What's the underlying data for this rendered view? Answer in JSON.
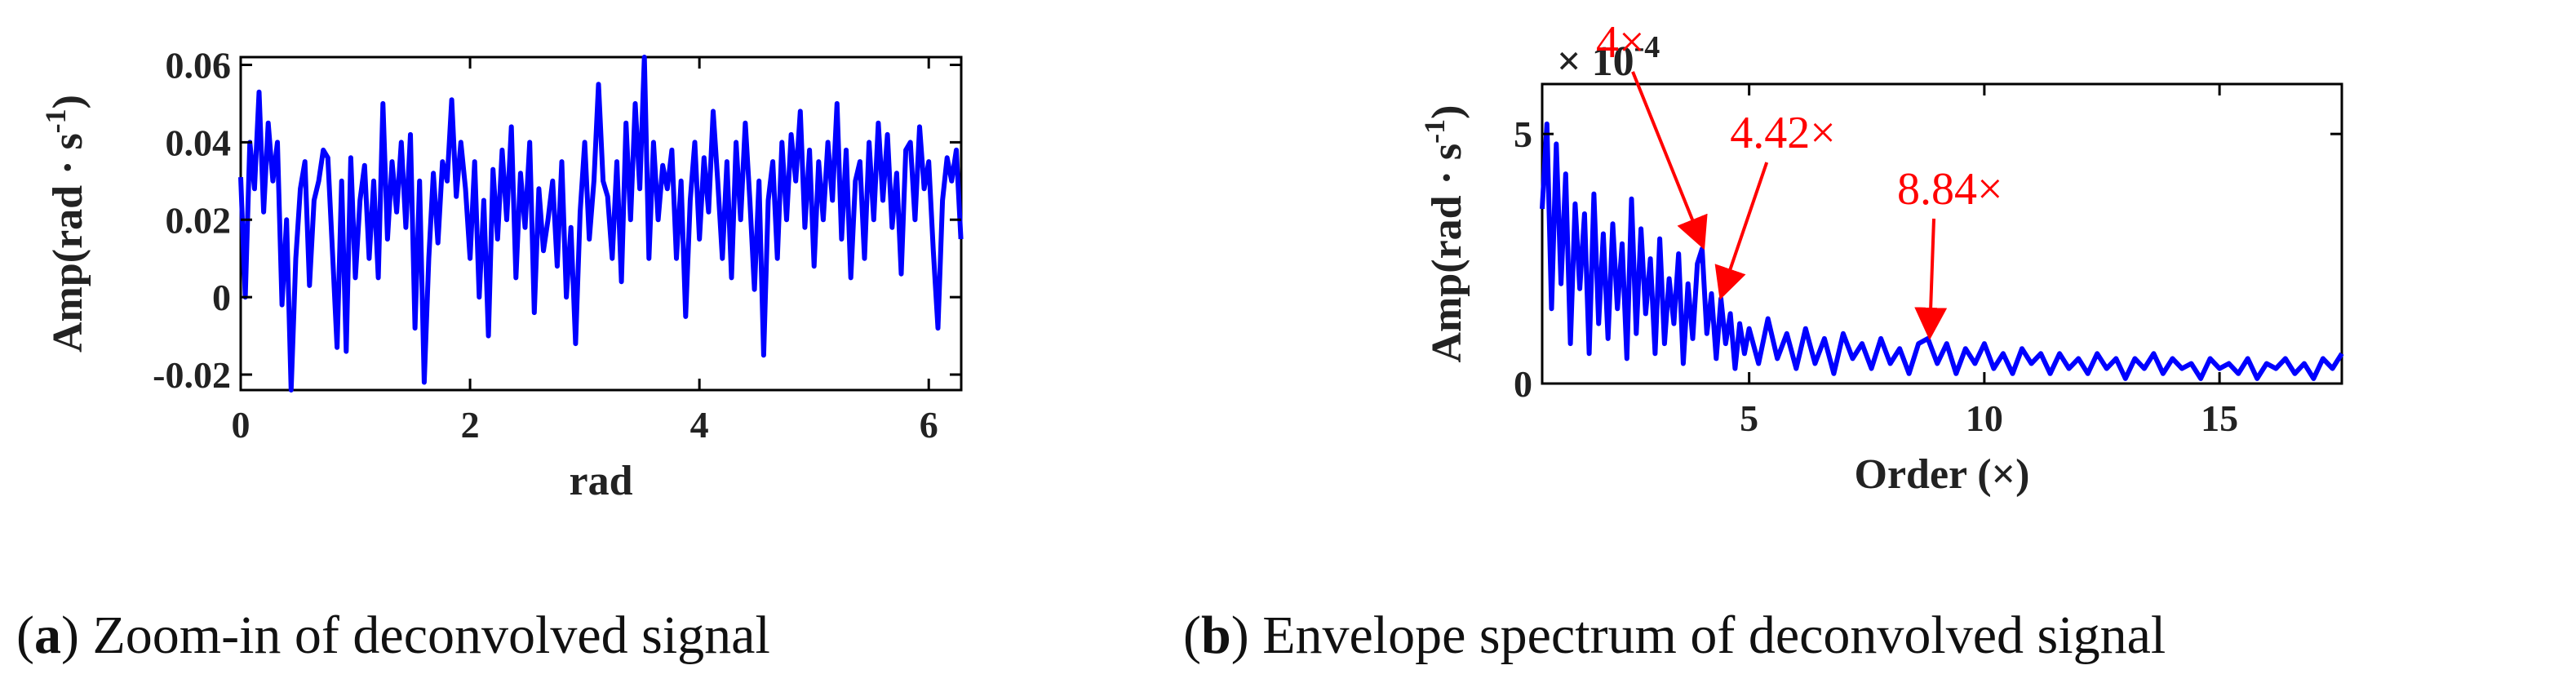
{
  "chart_data": [
    {
      "type": "line",
      "panel_label": "a",
      "caption": "Zoom-in of deconvolved signal",
      "xlabel": "rad",
      "ylabel_main": "Amp(rad · s",
      "ylabel_sup": "-1",
      "ylabel_close": ")",
      "xlim": [
        0,
        6.283
      ],
      "ylim": [
        -0.024,
        0.062
      ],
      "xticks": [
        0,
        2,
        4,
        6
      ],
      "xtick_labels": [
        "0",
        "2",
        "4",
        "6"
      ],
      "yticks": [
        -0.02,
        0,
        0.02,
        0.04,
        0.06
      ],
      "ytick_labels": [
        "-0.02",
        "0",
        "0.02",
        "0.04",
        "0.06"
      ],
      "series": [
        {
          "color": "#0000ff",
          "x": [
            0.0,
            0.04,
            0.08,
            0.12,
            0.16,
            0.2,
            0.24,
            0.28,
            0.32,
            0.36,
            0.4,
            0.44,
            0.48,
            0.52,
            0.56,
            0.6,
            0.64,
            0.68,
            0.72,
            0.76,
            0.8,
            0.84,
            0.88,
            0.92,
            0.96,
            1.0,
            1.04,
            1.08,
            1.12,
            1.16,
            1.2,
            1.24,
            1.28,
            1.32,
            1.36,
            1.4,
            1.44,
            1.48,
            1.52,
            1.56,
            1.6,
            1.64,
            1.68,
            1.72,
            1.76,
            1.8,
            1.84,
            1.88,
            1.92,
            1.96,
            2.0,
            2.04,
            2.08,
            2.12,
            2.16,
            2.2,
            2.24,
            2.28,
            2.32,
            2.36,
            2.4,
            2.44,
            2.48,
            2.52,
            2.56,
            2.6,
            2.64,
            2.68,
            2.72,
            2.76,
            2.8,
            2.84,
            2.88,
            2.92,
            2.96,
            3.0,
            3.04,
            3.08,
            3.12,
            3.16,
            3.2,
            3.24,
            3.28,
            3.32,
            3.36,
            3.4,
            3.44,
            3.48,
            3.52,
            3.56,
            3.6,
            3.64,
            3.68,
            3.72,
            3.76,
            3.8,
            3.84,
            3.88,
            3.92,
            3.96,
            4.0,
            4.04,
            4.08,
            4.12,
            4.16,
            4.2,
            4.24,
            4.28,
            4.32,
            4.36,
            4.4,
            4.44,
            4.48,
            4.52,
            4.56,
            4.6,
            4.64,
            4.68,
            4.72,
            4.76,
            4.8,
            4.84,
            4.88,
            4.92,
            4.96,
            5.0,
            5.04,
            5.08,
            5.12,
            5.16,
            5.2,
            5.24,
            5.28,
            5.32,
            5.36,
            5.4,
            5.44,
            5.48,
            5.52,
            5.56,
            5.6,
            5.64,
            5.68,
            5.72,
            5.76,
            5.8,
            5.84,
            5.88,
            5.92,
            5.96,
            6.0,
            6.04,
            6.08,
            6.12,
            6.16,
            6.2,
            6.24,
            6.28
          ],
          "y": [
            0.031,
            0.0,
            0.04,
            0.028,
            0.053,
            0.022,
            0.045,
            0.03,
            0.04,
            -0.002,
            0.02,
            -0.024,
            0.01,
            0.028,
            0.035,
            0.003,
            0.025,
            0.03,
            0.038,
            0.036,
            0.012,
            -0.013,
            0.03,
            -0.014,
            0.036,
            0.005,
            0.025,
            0.034,
            0.01,
            0.03,
            0.005,
            0.05,
            0.015,
            0.035,
            0.022,
            0.04,
            0.018,
            0.042,
            -0.008,
            0.03,
            -0.022,
            0.01,
            0.032,
            0.014,
            0.035,
            0.03,
            0.051,
            0.026,
            0.04,
            0.028,
            0.01,
            0.035,
            0.0,
            0.025,
            -0.01,
            0.033,
            0.015,
            0.038,
            0.02,
            0.044,
            0.005,
            0.032,
            0.018,
            0.04,
            -0.004,
            0.028,
            0.012,
            0.02,
            0.03,
            0.008,
            0.035,
            0.0,
            0.018,
            -0.012,
            0.022,
            0.04,
            0.015,
            0.03,
            0.055,
            0.03,
            0.026,
            0.01,
            0.035,
            0.004,
            0.045,
            0.02,
            0.05,
            0.028,
            0.062,
            0.01,
            0.04,
            0.02,
            0.034,
            0.028,
            0.038,
            0.01,
            0.03,
            -0.005,
            0.025,
            0.04,
            0.015,
            0.036,
            0.022,
            0.048,
            0.03,
            0.01,
            0.035,
            0.005,
            0.04,
            0.02,
            0.045,
            0.025,
            0.002,
            0.03,
            -0.015,
            0.025,
            0.035,
            0.01,
            0.04,
            0.02,
            0.042,
            0.03,
            0.048,
            0.018,
            0.038,
            0.008,
            0.035,
            0.02,
            0.04,
            0.025,
            0.05,
            0.015,
            0.038,
            0.005,
            0.03,
            0.035,
            0.01,
            0.04,
            0.02,
            0.045,
            0.025,
            0.042,
            0.018,
            0.032,
            0.006,
            0.038,
            0.04,
            0.02,
            0.044,
            0.028,
            0.035,
            0.012,
            -0.008,
            0.025,
            0.036,
            0.03,
            0.038,
            0.015
          ]
        }
      ]
    },
    {
      "type": "line",
      "panel_label": "b",
      "caption": "Envelope spectrum of deconvolved signal",
      "xlabel": "Order (×)",
      "ylabel_main": "Amp(rad · s",
      "ylabel_sup": "-1",
      "ylabel_close": ")",
      "exponent_label": "× 10",
      "exponent_sup": "-4",
      "xlim": [
        0.6,
        17.6
      ],
      "ylim": [
        0,
        6
      ],
      "xticks": [
        5,
        10,
        15
      ],
      "xtick_labels": [
        "5",
        "10",
        "15"
      ],
      "yticks": [
        0,
        5
      ],
      "ytick_labels": [
        "0",
        "5"
      ],
      "annotations": [
        {
          "text": "4×",
          "x": 4.0,
          "y": 2.7
        },
        {
          "text": "4.42×",
          "x": 4.42,
          "y": 1.7
        },
        {
          "text": "8.84×",
          "x": 8.84,
          "y": 0.9
        }
      ],
      "series": [
        {
          "color": "#0000ff",
          "x": [
            0.6,
            0.7,
            0.8,
            0.9,
            1.0,
            1.1,
            1.2,
            1.3,
            1.4,
            1.5,
            1.6,
            1.7,
            1.8,
            1.9,
            2.0,
            2.1,
            2.2,
            2.3,
            2.4,
            2.5,
            2.6,
            2.7,
            2.8,
            2.9,
            3.0,
            3.1,
            3.2,
            3.3,
            3.4,
            3.5,
            3.6,
            3.7,
            3.8,
            3.9,
            4.0,
            4.1,
            4.2,
            4.3,
            4.4,
            4.5,
            4.6,
            4.7,
            4.8,
            4.9,
            5.0,
            5.2,
            5.4,
            5.6,
            5.8,
            6.0,
            6.2,
            6.4,
            6.6,
            6.8,
            7.0,
            7.2,
            7.4,
            7.6,
            7.8,
            8.0,
            8.2,
            8.4,
            8.6,
            8.8,
            9.0,
            9.2,
            9.4,
            9.6,
            9.8,
            10.0,
            10.2,
            10.4,
            10.6,
            10.8,
            11.0,
            11.2,
            11.4,
            11.6,
            11.8,
            12.0,
            12.2,
            12.4,
            12.6,
            12.8,
            13.0,
            13.2,
            13.4,
            13.6,
            13.8,
            14.0,
            14.2,
            14.4,
            14.6,
            14.8,
            15.0,
            15.2,
            15.4,
            15.6,
            15.8,
            16.0,
            16.2,
            16.4,
            16.6,
            16.8,
            17.0,
            17.2,
            17.4,
            17.6
          ],
          "y": [
            3.5,
            5.2,
            1.5,
            4.8,
            2.0,
            4.2,
            0.8,
            3.6,
            1.9,
            3.4,
            0.6,
            3.8,
            1.2,
            3.0,
            0.9,
            3.2,
            1.5,
            2.8,
            0.5,
            3.7,
            1.0,
            3.1,
            1.4,
            2.5,
            0.6,
            2.9,
            0.8,
            2.1,
            1.2,
            2.6,
            0.4,
            2.0,
            0.9,
            2.4,
            2.7,
            1.0,
            1.8,
            0.5,
            1.7,
            0.8,
            1.4,
            0.3,
            1.2,
            0.6,
            1.1,
            0.4,
            1.3,
            0.5,
            1.0,
            0.3,
            1.1,
            0.4,
            0.9,
            0.2,
            1.0,
            0.5,
            0.8,
            0.3,
            0.9,
            0.4,
            0.7,
            0.2,
            0.8,
            0.9,
            0.4,
            0.8,
            0.2,
            0.7,
            0.4,
            0.8,
            0.3,
            0.6,
            0.2,
            0.7,
            0.4,
            0.6,
            0.2,
            0.6,
            0.3,
            0.5,
            0.2,
            0.6,
            0.3,
            0.5,
            0.1,
            0.5,
            0.3,
            0.6,
            0.2,
            0.5,
            0.3,
            0.4,
            0.1,
            0.5,
            0.3,
            0.4,
            0.2,
            0.5,
            0.1,
            0.4,
            0.3,
            0.5,
            0.2,
            0.4,
            0.1,
            0.5,
            0.3,
            0.6
          ]
        }
      ]
    }
  ]
}
